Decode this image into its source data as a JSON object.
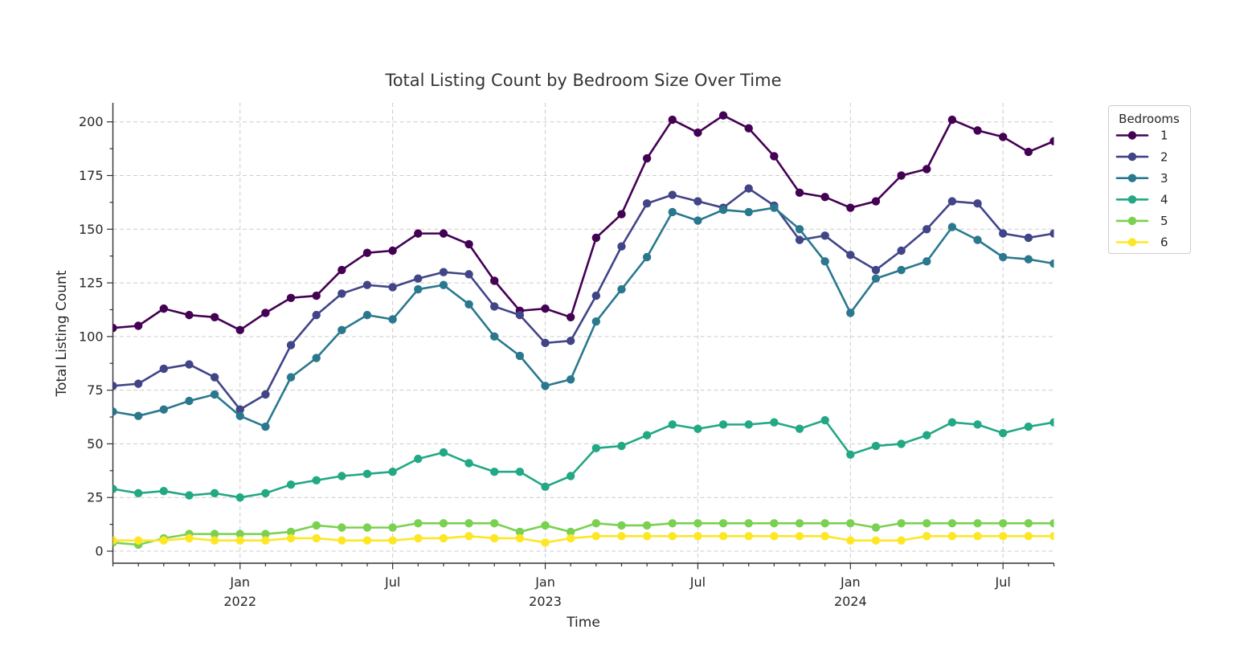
{
  "title": "Total Listing Count by Bedroom Size Over Time",
  "axes": {
    "x_label": "Time",
    "y_label": "Total Listing Count",
    "y_ticks": [
      0,
      25,
      50,
      75,
      100,
      125,
      150,
      175,
      200
    ],
    "x_major_ticks": [
      {
        "month": "Jan",
        "year": "2022",
        "x": "2022-01"
      },
      {
        "month": "Jul",
        "year": "",
        "x": "2022-07"
      },
      {
        "month": "Jan",
        "year": "2023",
        "x": "2023-01"
      },
      {
        "month": "Jul",
        "year": "",
        "x": "2023-07"
      },
      {
        "month": "Jan",
        "year": "2024",
        "x": "2024-01"
      },
      {
        "month": "Jul",
        "year": "",
        "x": "2024-07"
      }
    ]
  },
  "legend": {
    "title": "Bedrooms",
    "position": "upper right, outside axes"
  },
  "chart_data": {
    "type": "line",
    "title": "Total Listing Count by Bedroom Size Over Time",
    "xlabel": "Time",
    "ylabel": "Total Listing Count",
    "grid": true,
    "grid_style": "dashed",
    "ylim": [
      -6,
      209
    ],
    "marker": "circle",
    "x": [
      "2021-08",
      "2021-09",
      "2021-10",
      "2021-11",
      "2021-12",
      "2022-01",
      "2022-02",
      "2022-03",
      "2022-04",
      "2022-05",
      "2022-06",
      "2022-07",
      "2022-08",
      "2022-09",
      "2022-10",
      "2022-11",
      "2022-12",
      "2023-01",
      "2023-02",
      "2023-03",
      "2023-04",
      "2023-05",
      "2023-06",
      "2023-07",
      "2023-08",
      "2023-09",
      "2023-10",
      "2023-11",
      "2023-12",
      "2024-01",
      "2024-02",
      "2024-03",
      "2024-04",
      "2024-05",
      "2024-06",
      "2024-07",
      "2024-08",
      "2024-09"
    ],
    "series": [
      {
        "name": "1",
        "color": "#440154",
        "values": [
          104,
          105,
          113,
          110,
          109,
          103,
          111,
          118,
          119,
          131,
          139,
          140,
          148,
          148,
          143,
          126,
          112,
          113,
          109,
          146,
          157,
          183,
          201,
          195,
          203,
          197,
          184,
          167,
          165,
          160,
          163,
          175,
          178,
          201,
          196,
          193,
          186,
          191
        ]
      },
      {
        "name": "2",
        "color": "#414487",
        "values": [
          77,
          78,
          85,
          87,
          81,
          66,
          73,
          96,
          110,
          120,
          124,
          123,
          127,
          130,
          129,
          114,
          110,
          97,
          98,
          119,
          142,
          162,
          166,
          163,
          160,
          169,
          161,
          145,
          147,
          138,
          131,
          140,
          150,
          163,
          162,
          148,
          146,
          148
        ]
      },
      {
        "name": "3",
        "color": "#2a788e",
        "values": [
          65,
          63,
          66,
          70,
          73,
          63,
          58,
          81,
          90,
          103,
          110,
          108,
          122,
          124,
          115,
          100,
          91,
          77,
          80,
          107,
          122,
          137,
          158,
          154,
          159,
          158,
          160,
          150,
          135,
          111,
          127,
          131,
          135,
          151,
          145,
          137,
          136,
          134
        ]
      },
      {
        "name": "4",
        "color": "#22a884",
        "values": [
          29,
          27,
          28,
          26,
          27,
          25,
          27,
          31,
          33,
          35,
          36,
          37,
          43,
          46,
          41,
          37,
          37,
          30,
          35,
          48,
          49,
          54,
          59,
          57,
          59,
          59,
          60,
          57,
          61,
          45,
          49,
          50,
          54,
          60,
          59,
          55,
          58,
          60
        ]
      },
      {
        "name": "5",
        "color": "#7ad151",
        "values": [
          4,
          3,
          6,
          8,
          8,
          8,
          8,
          9,
          12,
          11,
          11,
          11,
          13,
          13,
          13,
          13,
          9,
          12,
          9,
          13,
          12,
          12,
          13,
          13,
          13,
          13,
          13,
          13,
          13,
          13,
          11,
          13,
          13,
          13,
          13,
          13,
          13,
          13
        ]
      },
      {
        "name": "6",
        "color": "#fde725",
        "values": [
          5,
          5,
          5,
          6,
          5,
          5,
          5,
          6,
          6,
          5,
          5,
          5,
          6,
          6,
          7,
          6,
          6,
          4,
          6,
          7,
          7,
          7,
          7,
          7,
          7,
          7,
          7,
          7,
          7,
          5,
          5,
          5,
          7,
          7,
          7,
          7,
          7,
          7
        ]
      }
    ]
  }
}
